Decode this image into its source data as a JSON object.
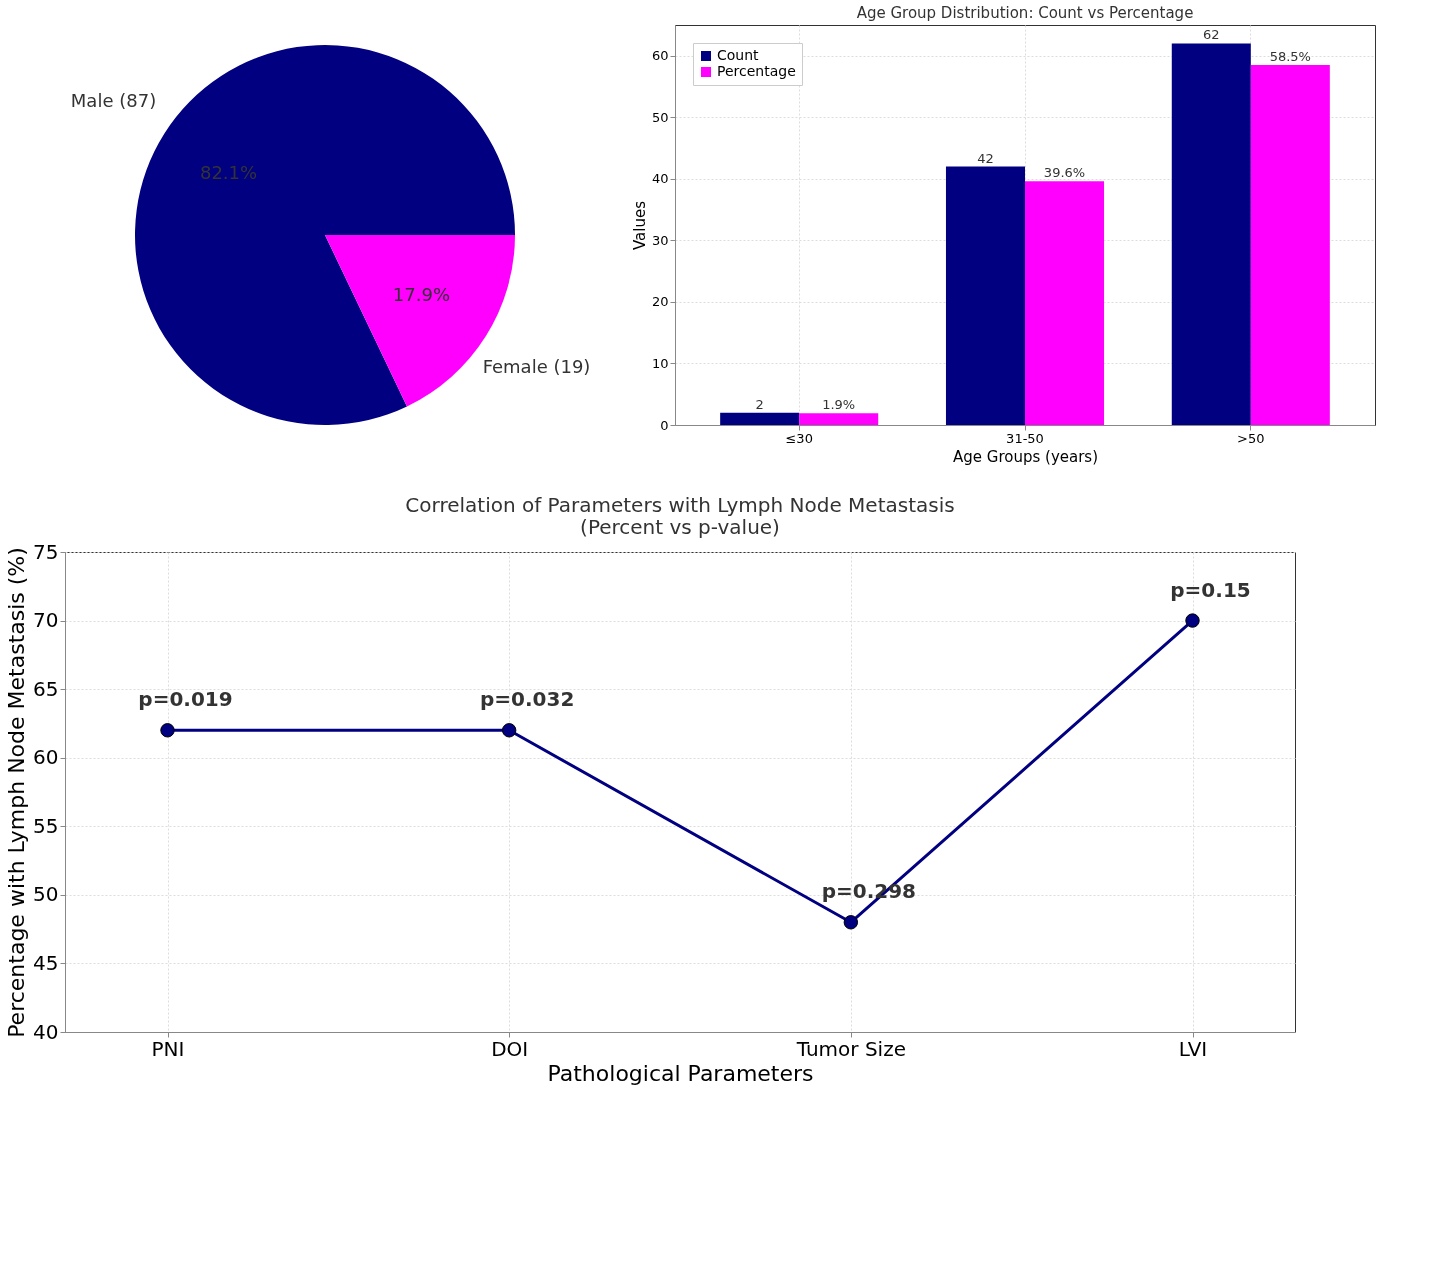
{
  "chart_data": [
    {
      "type": "pie",
      "categories": [
        "Male (87)",
        "Female (19)"
      ],
      "values": [
        82.1,
        17.9
      ],
      "colors": [
        "#000080",
        "#ff00ff"
      ],
      "value_labels": [
        "82.1%",
        "17.9%"
      ],
      "legend": false
    },
    {
      "type": "bar",
      "title": "Age Group Distribution: Count vs Percentage",
      "xlabel": "Age Groups (years)",
      "ylabel": "Values",
      "categories": [
        "≤30",
        "31-50",
        ">50"
      ],
      "series": [
        {
          "name": "Count",
          "color": "#000080",
          "values": [
            2,
            42,
            62
          ],
          "value_labels": [
            "2",
            "42",
            "62"
          ]
        },
        {
          "name": "Percentage",
          "color": "#ff00ff",
          "values": [
            1.9,
            39.6,
            58.5
          ],
          "value_labels": [
            "1.9%",
            "39.6%",
            "58.5%"
          ]
        }
      ],
      "ylim": [
        0,
        65
      ],
      "yticks": [
        0,
        10,
        20,
        30,
        40,
        50,
        60
      ],
      "grid": true,
      "legend": "top left"
    },
    {
      "type": "line",
      "title": "Correlation of Parameters with Lymph Node Metastasis\n(Percent vs p-value)",
      "xlabel": "Pathological Parameters",
      "ylabel": "Percentage with Lymph Node Metastasis (%)",
      "categories": [
        "PNI",
        "DOI",
        "Tumor Size",
        "LVI"
      ],
      "values": [
        62,
        62,
        48,
        70
      ],
      "annotations": [
        {
          "text": "p=0.019",
          "x": "PNI",
          "y": 62
        },
        {
          "text": "p=0.032",
          "x": "DOI",
          "y": 62
        },
        {
          "text": "p=0.298",
          "x": "Tumor Size",
          "y": 48
        },
        {
          "text": "p=0.15",
          "x": "LVI",
          "y": 70
        }
      ],
      "color": "#000080",
      "ylim": [
        40,
        75
      ],
      "yticks": [
        40,
        45,
        50,
        55,
        60,
        65,
        70,
        75
      ],
      "grid": true,
      "marker": "circle",
      "line_style": "solid"
    }
  ]
}
